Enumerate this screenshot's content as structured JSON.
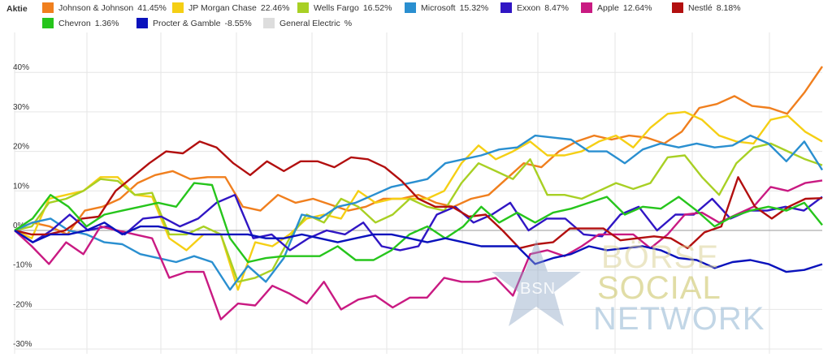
{
  "legend": {
    "title": "Aktie",
    "items": [
      {
        "name": "Johnson & Johnson",
        "value": "41.45%",
        "color": "#F07F1E"
      },
      {
        "name": "JP Morgan Chase",
        "value": "22.46%",
        "color": "#F5CF14"
      },
      {
        "name": "Wells Fargo",
        "value": "16.52%",
        "color": "#A8D024"
      },
      {
        "name": "Microsoft",
        "value": "15.32%",
        "color": "#2A8FD0"
      },
      {
        "name": "Exxon",
        "value": "8.47%",
        "color": "#3016C4"
      },
      {
        "name": "Apple",
        "value": "12.64%",
        "color": "#C91A82"
      },
      {
        "name": "Nestlé",
        "value": "8.18%",
        "color": "#B20F0F"
      },
      {
        "name": "Chevron",
        "value": "1.36%",
        "color": "#26C51C"
      },
      {
        "name": "Procter & Gamble",
        "value": "-8.55%",
        "color": "#0A12BC"
      },
      {
        "name": "General Electric",
        "value": "%",
        "color": "#DDDDDD"
      }
    ]
  },
  "watermark": {
    "badge": "BSN",
    "line1": "BÖRSE",
    "line2": "SOCIAL",
    "line3": "NETWORK"
  },
  "chart_data": {
    "type": "line",
    "ylim": [
      -30,
      45
    ],
    "yticks": [
      -30,
      -20,
      -10,
      0,
      10,
      20,
      30,
      40
    ],
    "ytick_labels": [
      "-30%",
      "-20%",
      "-10%",
      "0%",
      "10%",
      "20%",
      "30%",
      "40%"
    ],
    "grid": true,
    "legend_position": "top",
    "series": [
      {
        "name": "Johnson & Johnson",
        "color": "#F07F1E",
        "values": [
          0,
          2,
          1,
          -1,
          5,
          6,
          8,
          12,
          14,
          15,
          13,
          13.5,
          13.5,
          6,
          5,
          9,
          7,
          8,
          6.5,
          5,
          6,
          8,
          8,
          9,
          7,
          6,
          8,
          9,
          13,
          17,
          16,
          20,
          22.5,
          24,
          23,
          24,
          23.5,
          22,
          25,
          31,
          32,
          34,
          31.5,
          31,
          29.5,
          35,
          41.5
        ]
      },
      {
        "name": "JP Morgan Chase",
        "color": "#F5CF14",
        "values": [
          0,
          -2,
          8,
          9,
          10,
          13.5,
          13.5,
          9,
          8.5,
          -2,
          -5,
          -1,
          -1,
          -15,
          -3,
          -4,
          -1,
          3,
          4,
          3,
          10,
          7,
          8,
          8,
          8,
          10,
          17,
          21.5,
          18,
          20,
          22.5,
          19,
          19,
          20,
          22.5,
          24,
          21,
          26,
          29.5,
          30,
          28,
          24,
          22.5,
          22,
          28,
          29,
          25,
          22.5
        ]
      },
      {
        "name": "Wells Fargo",
        "color": "#A8D024",
        "values": [
          0,
          1,
          7,
          8,
          10,
          13,
          12.5,
          9,
          9.5,
          -1,
          -1,
          1,
          -1,
          -13,
          -12,
          -10,
          -2,
          4,
          2,
          8,
          6,
          2,
          4,
          8,
          6,
          5,
          12,
          17,
          15,
          13,
          18,
          9,
          9,
          8,
          10,
          12,
          10.5,
          12,
          18.5,
          19,
          13.5,
          9,
          17,
          21,
          22,
          20,
          18,
          16.5
        ]
      },
      {
        "name": "Microsoft",
        "color": "#2A8FD0",
        "values": [
          0,
          2,
          3,
          0,
          -1,
          -3,
          -3.5,
          -6,
          -7,
          -8,
          -6.5,
          -8,
          -15,
          -9,
          -13,
          -7,
          4,
          3,
          6,
          7,
          9,
          11,
          12,
          13,
          17,
          18,
          19,
          20.5,
          21,
          24,
          23.5,
          23,
          20,
          20,
          17,
          20.5,
          22,
          21,
          22,
          21,
          21.5,
          24,
          22,
          17.5,
          22.5,
          15.3
        ]
      },
      {
        "name": "Exxon",
        "color": "#3016C4",
        "values": [
          0,
          -3,
          0,
          4,
          0,
          1,
          -1,
          3,
          3.5,
          1,
          3,
          7,
          9,
          -2,
          -1,
          -5,
          -2,
          0,
          -1,
          2,
          -4,
          -5,
          -4,
          4,
          6,
          2,
          4,
          7,
          0,
          3,
          3,
          -1,
          -1.5,
          4,
          6,
          0,
          4,
          4,
          8,
          3,
          5,
          5,
          6,
          5,
          8.5
        ]
      },
      {
        "name": "Apple",
        "color": "#C91A82",
        "values": [
          0,
          -4,
          -8.5,
          -3,
          -6,
          1,
          0,
          -1,
          -2,
          -12,
          -10.5,
          -10.5,
          -22.5,
          -18.5,
          -19,
          -14,
          -16,
          -18.5,
          -13,
          -20,
          -17.5,
          -16.5,
          -19.5,
          -17,
          -17,
          -12,
          -13,
          -13,
          -12,
          -16.5,
          -6,
          -5,
          -6.5,
          -4,
          -1,
          -1,
          -1,
          -4.5,
          -1,
          4,
          4.5,
          2,
          4,
          6,
          11,
          10,
          12,
          12.64
        ]
      },
      {
        "name": "Nestlé",
        "color": "#B20F0F",
        "values": [
          0,
          -1,
          -1,
          0,
          3,
          3.5,
          10,
          13.5,
          17,
          20,
          19.5,
          22.5,
          21,
          17,
          14,
          17.5,
          15,
          17.5,
          17.5,
          16,
          18.5,
          18,
          16,
          12.5,
          8,
          6,
          6,
          3.5,
          4,
          0,
          -4.5,
          -3.5,
          -3,
          0.5,
          0.5,
          0.5,
          -2.5,
          -2,
          -1.5,
          -2,
          -4.5,
          -0.5,
          1,
          13.5,
          6,
          3,
          6,
          8,
          8.18
        ]
      },
      {
        "name": "Chevron",
        "color": "#26C51C",
        "values": [
          0,
          3,
          9,
          6,
          1,
          4,
          5,
          6,
          7,
          6,
          12,
          11.5,
          -2,
          -8,
          -7,
          -6.5,
          -6.5,
          -6.5,
          -4,
          -7.5,
          -7.5,
          -5,
          -1,
          1,
          -2,
          1,
          6,
          2,
          4.5,
          2,
          4.5,
          5.5,
          7,
          8.5,
          4,
          6,
          5.5,
          8.5,
          5,
          1,
          3.5,
          5,
          6,
          5,
          7,
          1.36
        ]
      },
      {
        "name": "Procter & Gamble",
        "color": "#0A12BC",
        "values": [
          0,
          -3,
          -1,
          -1,
          0,
          2,
          -1,
          1,
          1,
          0,
          -1,
          -1,
          -1,
          -1,
          -2,
          -2,
          -1,
          -2,
          -3,
          -2,
          -1,
          -1,
          -2,
          -3,
          -2,
          -3,
          -4,
          -4,
          -4,
          -8.5,
          -7,
          -6,
          -4,
          -5,
          -4.5,
          -4,
          -5,
          -7,
          -7.5,
          -9.5,
          -8,
          -7.5,
          -8.5,
          -10.5,
          -10,
          -8.55
        ]
      },
      {
        "name": "General Electric",
        "color": "#DDDDDD",
        "values": []
      }
    ]
  }
}
